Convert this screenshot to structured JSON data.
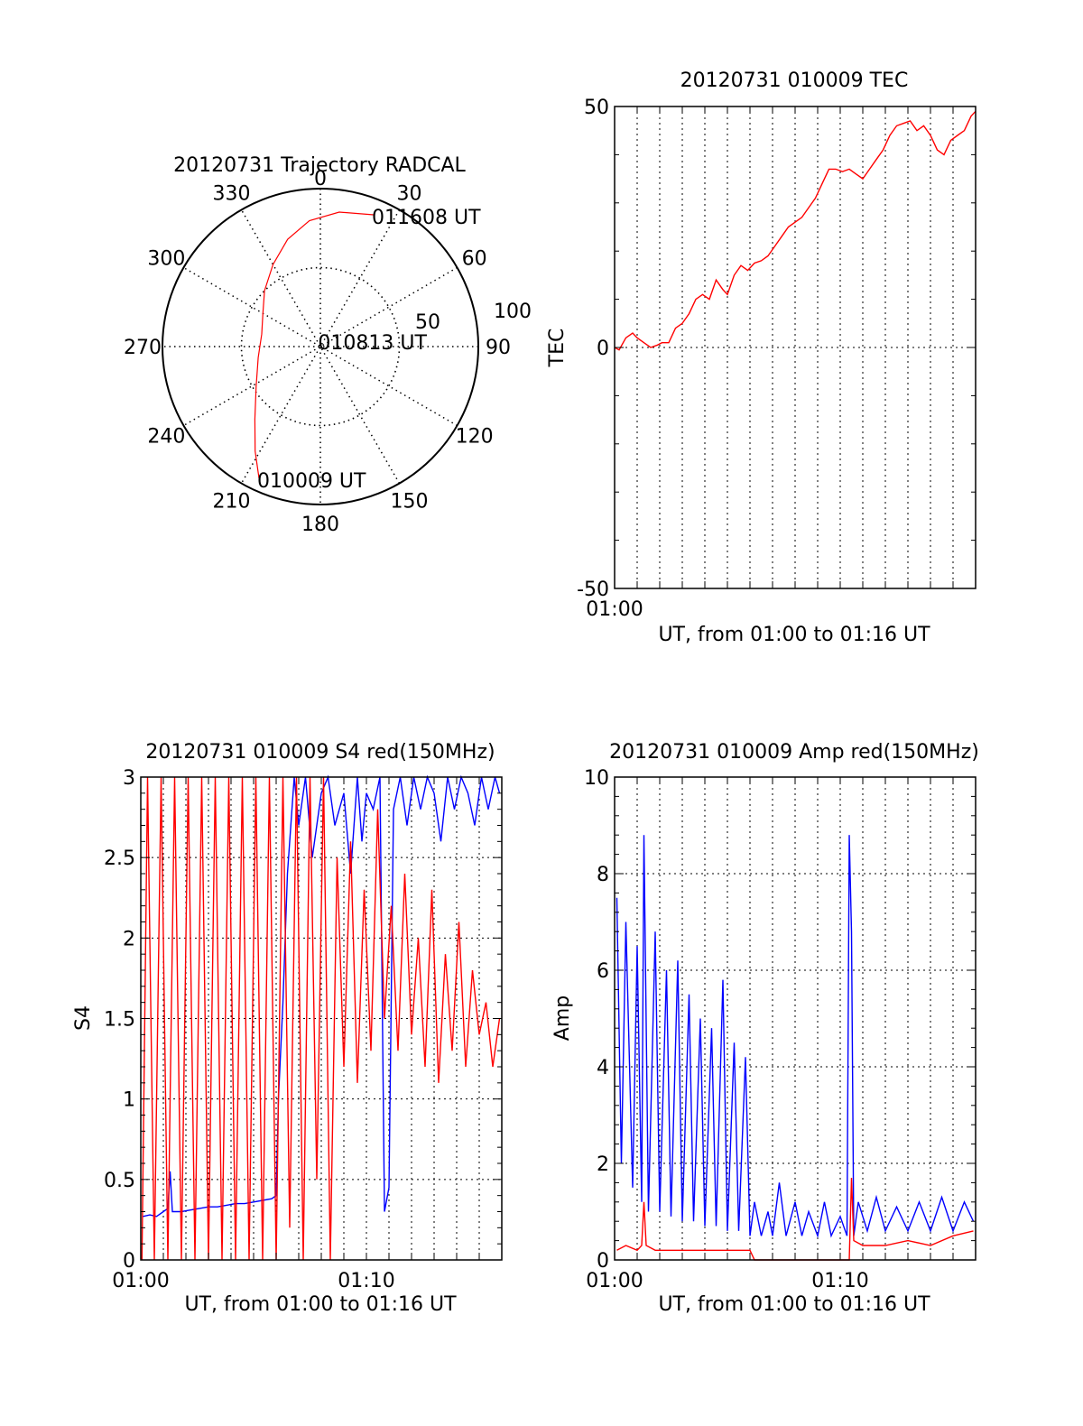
{
  "colors": {
    "red": "#ff0000",
    "blue": "#0000ff",
    "axis": "#000000",
    "grid": "#000000"
  },
  "chart_data": [
    {
      "id": "trajectory",
      "type": "polar",
      "title": "20120731 Trajectory RADCAL",
      "azimuth_labels": [
        "0",
        "30",
        "60",
        "90",
        "120",
        "150",
        "180",
        "210",
        "240",
        "270",
        "300",
        "330"
      ],
      "ring_labels": [
        "50",
        "100"
      ],
      "ring_values": [
        50,
        100
      ],
      "r_max": 100,
      "annotations": [
        {
          "text": "011608 UT",
          "azimuth": 22,
          "r": 90
        },
        {
          "text": "010813 UT",
          "azimuth": 355,
          "r": 4
        },
        {
          "text": "010009 UT",
          "azimuth": 205,
          "r": 92
        }
      ],
      "trajectory": {
        "color": "red",
        "points": [
          [
            205,
            92
          ],
          [
            212,
            78
          ],
          [
            222,
            62
          ],
          [
            238,
            48
          ],
          [
            260,
            40
          ],
          [
            282,
            38
          ],
          [
            300,
            42
          ],
          [
            315,
            50
          ],
          [
            330,
            60
          ],
          [
            343,
            71
          ],
          [
            355,
            80
          ],
          [
            8,
            86
          ],
          [
            22,
            90
          ]
        ]
      }
    },
    {
      "id": "tec",
      "type": "line",
      "title": "20120731 010009 TEC",
      "ylabel": "TEC",
      "xlabel": "UT, from 01:00 to 01:16 UT",
      "ylim": [
        -50,
        50
      ],
      "y_ticks": [
        "-50",
        "0",
        "50"
      ],
      "x_ticks": [
        "01:00"
      ],
      "xlim_min": [
        0,
        16
      ],
      "series": [
        {
          "color": "red",
          "x": [
            0,
            0.2,
            0.5,
            0.8,
            1.0,
            1.3,
            1.6,
            1.9,
            2.1,
            2.4,
            2.7,
            3.0,
            3.3,
            3.6,
            3.9,
            4.2,
            4.5,
            4.8,
            5.0,
            5.3,
            5.6,
            5.9,
            6.2,
            6.5,
            6.8,
            7.1,
            7.4,
            7.7,
            8.0,
            8.3,
            8.6,
            8.9,
            9.2,
            9.5,
            9.8,
            10.1,
            10.4,
            10.7,
            11.0,
            11.3,
            11.6,
            11.9,
            12.2,
            12.5,
            12.8,
            13.1,
            13.4,
            13.7,
            14.0,
            14.3,
            14.6,
            14.9,
            15.2,
            15.5,
            15.8,
            16.0
          ],
          "y": [
            0,
            -0.5,
            2,
            3,
            2,
            1,
            0,
            0.5,
            1,
            1,
            4,
            5,
            7,
            10,
            11,
            10,
            14,
            12,
            11,
            15,
            17,
            16,
            17.5,
            18,
            19,
            21,
            23,
            25,
            26,
            27,
            29,
            31,
            34,
            37,
            37,
            36.5,
            37,
            36,
            35,
            37,
            39,
            41,
            44,
            46,
            46.5,
            47,
            45,
            46,
            44,
            41,
            40,
            43,
            44,
            45,
            48,
            49
          ]
        }
      ]
    },
    {
      "id": "s4",
      "type": "line",
      "title": "20120731 010009 S4 red(150MHz)",
      "ylabel": "S4",
      "xlabel": "UT, from 01:00 to 01:16 UT",
      "ylim": [
        0,
        3
      ],
      "y_ticks": [
        "0",
        "0.5",
        "1",
        "1.5",
        "2",
        "2.5",
        "3"
      ],
      "x_ticks": [
        "01:00",
        "01:10"
      ],
      "xlim_min": [
        0,
        16
      ],
      "series": [
        {
          "color": "blue",
          "x": [
            0.1,
            0.4,
            0.7,
            1.0,
            1.2,
            1.3,
            1.4,
            1.8,
            2.2,
            2.6,
            3.0,
            3.4,
            3.8,
            4.2,
            4.6,
            5.0,
            5.4,
            5.8,
            6.0,
            6.1,
            6.3,
            6.5,
            6.8,
            7.0,
            7.3,
            7.6,
            8.0,
            8.3,
            8.6,
            9.0,
            9.3,
            9.6,
            9.8,
            10.0,
            10.3,
            10.6,
            10.8,
            11.0,
            11.2,
            11.5,
            11.8,
            12.1,
            12.4,
            12.7,
            13.0,
            13.3,
            13.6,
            13.9,
            14.2,
            14.5,
            14.8,
            15.1,
            15.4,
            15.7,
            15.9
          ],
          "y": [
            0.27,
            0.28,
            0.27,
            0.3,
            0.32,
            0.55,
            0.3,
            0.3,
            0.31,
            0.32,
            0.33,
            0.33,
            0.34,
            0.35,
            0.35,
            0.36,
            0.37,
            0.38,
            0.4,
            1.0,
            1.6,
            2.4,
            3.0,
            2.7,
            3.0,
            2.5,
            2.9,
            3.0,
            2.7,
            2.9,
            2.4,
            3.0,
            2.6,
            2.9,
            2.8,
            3.0,
            0.3,
            0.45,
            2.8,
            3.0,
            2.7,
            3.0,
            2.8,
            3.0,
            2.9,
            2.6,
            3.0,
            2.8,
            3.0,
            2.9,
            2.7,
            3.0,
            2.8,
            3.0,
            2.9
          ]
        },
        {
          "color": "red",
          "x": [
            0.05,
            0.3,
            0.6,
            0.9,
            1.2,
            1.5,
            1.8,
            2.1,
            2.4,
            2.7,
            3.0,
            3.3,
            3.6,
            3.9,
            4.2,
            4.5,
            4.8,
            5.1,
            5.4,
            5.7,
            6.0,
            6.3,
            6.6,
            6.9,
            7.2,
            7.5,
            7.8,
            8.1,
            8.4,
            8.7,
            9.0,
            9.3,
            9.6,
            9.9,
            10.2,
            10.5,
            10.8,
            11.1,
            11.4,
            11.7,
            12.0,
            12.3,
            12.6,
            12.9,
            13.2,
            13.5,
            13.8,
            14.1,
            14.4,
            14.7,
            15.0,
            15.3,
            15.6,
            15.9
          ],
          "y": [
            0.0,
            3.0,
            0.0,
            3.0,
            0.0,
            3.0,
            0.0,
            3.0,
            0.0,
            3.0,
            0.0,
            3.0,
            0.0,
            3.0,
            0.0,
            3.0,
            0.0,
            3.0,
            0.0,
            3.0,
            0.0,
            3.0,
            0.2,
            3.0,
            0.0,
            3.0,
            0.5,
            3.0,
            0.0,
            2.5,
            1.2,
            2.6,
            1.1,
            2.3,
            1.3,
            2.8,
            1.5,
            2.2,
            1.3,
            2.4,
            1.4,
            2.0,
            1.2,
            2.3,
            1.1,
            1.9,
            1.3,
            2.1,
            1.2,
            1.8,
            1.4,
            1.6,
            1.2,
            1.5
          ]
        }
      ]
    },
    {
      "id": "amp",
      "type": "line",
      "title": "20120731 010009 Amp red(150MHz)",
      "ylabel": "Amp",
      "xlabel": "UT, from 01:00 to 01:16 UT",
      "ylim": [
        0,
        10
      ],
      "y_ticks": [
        "0",
        "2",
        "4",
        "6",
        "8",
        "10"
      ],
      "x_ticks": [
        "01:00",
        "01:10"
      ],
      "xlim_min": [
        0,
        16
      ],
      "series": [
        {
          "color": "blue",
          "x": [
            0.1,
            0.3,
            0.5,
            0.8,
            1.0,
            1.2,
            1.3,
            1.5,
            1.8,
            2.0,
            2.3,
            2.5,
            2.8,
            3.0,
            3.3,
            3.5,
            3.8,
            4.0,
            4.3,
            4.5,
            4.8,
            5.0,
            5.3,
            5.5,
            5.8,
            6.0,
            6.2,
            6.5,
            6.8,
            7.0,
            7.3,
            7.6,
            8.0,
            8.3,
            8.6,
            9.0,
            9.3,
            9.6,
            10.0,
            10.3,
            10.4,
            10.5,
            10.6,
            10.8,
            11.2,
            11.6,
            12.0,
            12.5,
            13.0,
            13.5,
            14.0,
            14.5,
            15.0,
            15.5,
            15.9
          ],
          "y": [
            7.5,
            2.0,
            7.0,
            1.5,
            6.5,
            1.2,
            8.8,
            1.0,
            6.8,
            1.0,
            6.0,
            0.9,
            6.2,
            0.8,
            5.5,
            0.8,
            5.0,
            0.7,
            4.8,
            0.7,
            5.8,
            0.6,
            4.5,
            0.6,
            4.2,
            0.5,
            1.2,
            0.5,
            1.0,
            0.5,
            1.6,
            0.5,
            1.2,
            0.5,
            1.0,
            0.5,
            1.2,
            0.5,
            0.9,
            0.5,
            8.8,
            6.8,
            0.5,
            1.2,
            0.6,
            1.3,
            0.6,
            1.1,
            0.6,
            1.2,
            0.6,
            1.3,
            0.6,
            1.2,
            0.8
          ]
        },
        {
          "color": "red",
          "x": [
            0.1,
            0.5,
            1.0,
            1.2,
            1.3,
            1.4,
            1.8,
            2.5,
            3.5,
            4.5,
            5.5,
            6.0,
            6.2,
            7.0,
            8.0,
            9.0,
            10.0,
            10.4,
            10.5,
            10.6,
            11.0,
            12.0,
            13.0,
            14.0,
            15.0,
            15.9
          ],
          "y": [
            0.2,
            0.3,
            0.2,
            0.3,
            1.2,
            0.3,
            0.2,
            0.2,
            0.2,
            0.2,
            0.2,
            0.2,
            0.0,
            0.0,
            0.0,
            0.0,
            0.0,
            0.0,
            1.7,
            0.4,
            0.3,
            0.3,
            0.4,
            0.3,
            0.5,
            0.6
          ]
        }
      ]
    }
  ]
}
